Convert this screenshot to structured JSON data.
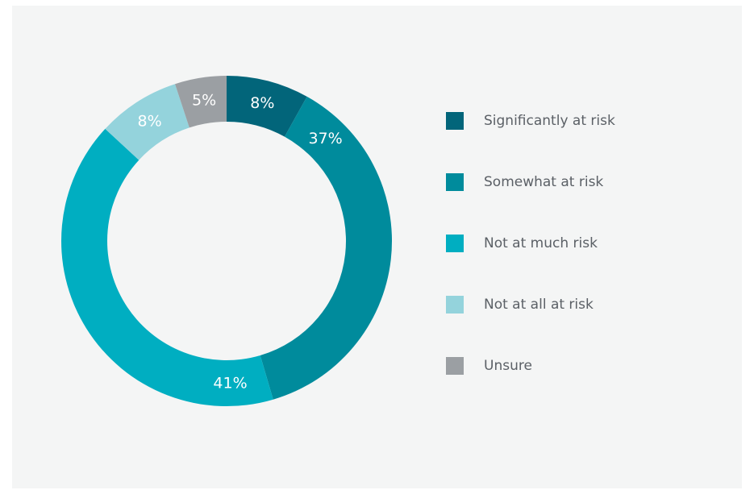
{
  "chart_data": {
    "type": "pie",
    "style": "donut",
    "title": "",
    "legend_position": "right",
    "slices": [
      {
        "name": "Significantly at risk",
        "value": 8,
        "label": "8%",
        "color": "#02657a"
      },
      {
        "name": "Somewhat at risk",
        "value": 37,
        "label": "37%",
        "color": "#008b9c"
      },
      {
        "name": "Not at much risk",
        "value": 41,
        "label": "41%",
        "color": "#00aec1"
      },
      {
        "name": "Not at all at risk",
        "value": 8,
        "label": "8%",
        "color": "#94d3dc"
      },
      {
        "name": "Unsure",
        "value": 5,
        "label": "5%",
        "color": "#9b9fa3"
      }
    ]
  }
}
